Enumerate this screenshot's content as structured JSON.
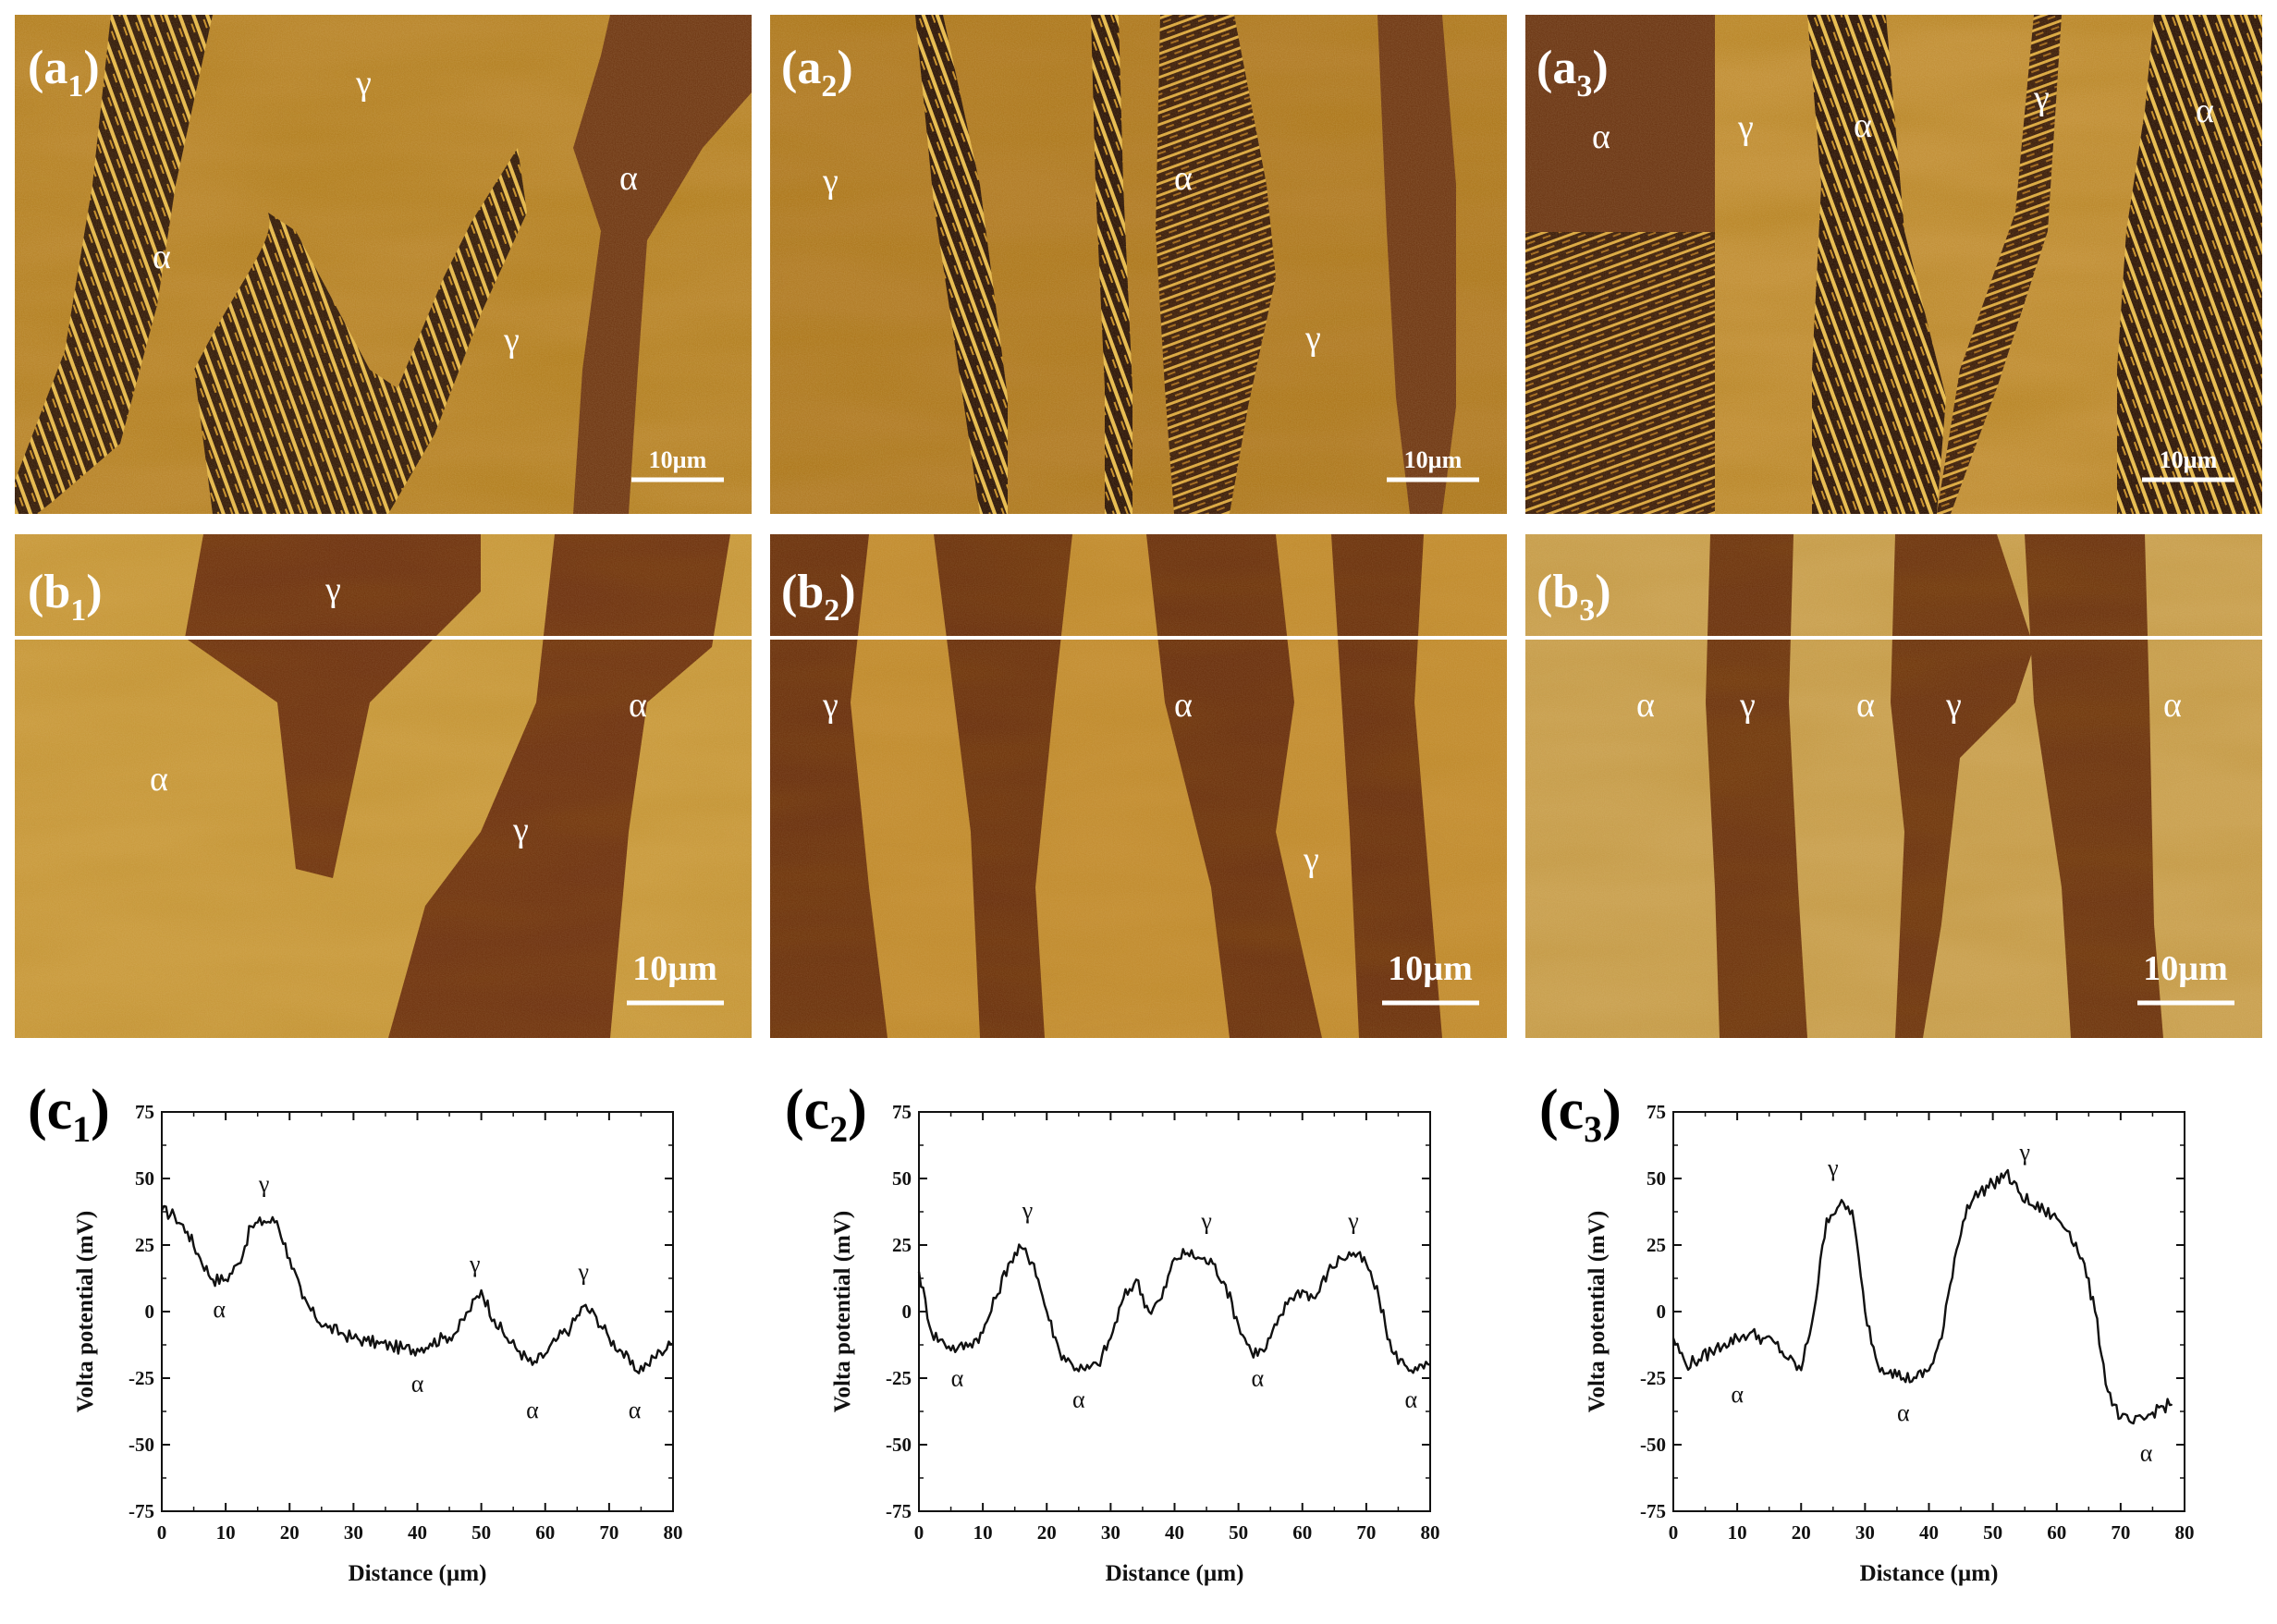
{
  "figure": {
    "a_panels": [
      {
        "label": "(a",
        "sub": "1",
        "scale": "10µm",
        "phases": [
          "γ",
          "α",
          "α",
          "γ"
        ]
      },
      {
        "label": "(a",
        "sub": "2",
        "scale": "10µm",
        "phases": [
          "γ",
          "α",
          "γ"
        ]
      },
      {
        "label": "(a",
        "sub": "3",
        "scale": "10µm",
        "phases": [
          "α",
          "γ",
          "α",
          "γ",
          "α"
        ]
      }
    ],
    "b_panels": [
      {
        "label": "(b",
        "sub": "1",
        "scale": "10µm",
        "phases": [
          "γ",
          "α",
          "α",
          "γ"
        ]
      },
      {
        "label": "(b",
        "sub": "2",
        "scale": "10µm",
        "phases": [
          "γ",
          "α",
          "γ"
        ]
      },
      {
        "label": "(b",
        "sub": "3",
        "scale": "10µm",
        "phases": [
          "α",
          "γ",
          "α",
          "γ",
          "α"
        ]
      }
    ]
  },
  "chart_data": [
    {
      "type": "line",
      "panel_label": "(c",
      "panel_sub": "1",
      "xlabel": "Distance (µm)",
      "ylabel": "Volta potential (mV)",
      "xlim": [
        0,
        80
      ],
      "ylim": [
        -75,
        75
      ],
      "xticks": [
        "0",
        "10",
        "20",
        "30",
        "40",
        "50",
        "60",
        "70",
        "80"
      ],
      "yticks": [
        "75",
        "50",
        "25",
        "0",
        "-25",
        "-50",
        "-75"
      ],
      "x": [
        0,
        2,
        4,
        6,
        8,
        10,
        12,
        14,
        16,
        18,
        20,
        22,
        24,
        26,
        28,
        30,
        32,
        34,
        36,
        38,
        40,
        42,
        44,
        46,
        48,
        50,
        52,
        54,
        56,
        58,
        60,
        62,
        64,
        66,
        68,
        70,
        72,
        74,
        76,
        78,
        80
      ],
      "y": [
        38,
        36,
        30,
        20,
        12,
        12,
        18,
        32,
        34,
        34,
        20,
        5,
        -2,
        -6,
        -8,
        -10,
        -11,
        -12,
        -13,
        -14,
        -14,
        -12,
        -10,
        -8,
        0,
        8,
        -3,
        -10,
        -15,
        -20,
        -16,
        -10,
        -6,
        2,
        -2,
        -10,
        -15,
        -22,
        -20,
        -15,
        -12
      ],
      "annotations": [
        {
          "text": "γ",
          "x": 16,
          "y": 45
        },
        {
          "text": "α",
          "x": 9,
          "y": -2
        },
        {
          "text": "α",
          "x": 40,
          "y": -30
        },
        {
          "text": "γ",
          "x": 49,
          "y": 15
        },
        {
          "text": "α",
          "x": 58,
          "y": -40
        },
        {
          "text": "γ",
          "x": 66,
          "y": 12
        },
        {
          "text": "α",
          "x": 74,
          "y": -40
        }
      ]
    },
    {
      "type": "line",
      "panel_label": "(c",
      "panel_sub": "2",
      "xlabel": "Distance (µm)",
      "ylabel": "Volta potential (mV)",
      "xlim": [
        0,
        80
      ],
      "ylim": [
        -75,
        75
      ],
      "xticks": [
        "0",
        "10",
        "20",
        "30",
        "40",
        "50",
        "60",
        "70",
        "80"
      ],
      "yticks": [
        "75",
        "50",
        "25",
        "0",
        "-25",
        "-50",
        "-75"
      ],
      "x": [
        0,
        2,
        4,
        6,
        8,
        10,
        12,
        14,
        16,
        18,
        20,
        22,
        24,
        26,
        28,
        30,
        32,
        34,
        36,
        38,
        40,
        42,
        44,
        46,
        48,
        50,
        52,
        54,
        56,
        58,
        60,
        62,
        64,
        66,
        68,
        70,
        72,
        74,
        76,
        78,
        80
      ],
      "y": [
        15,
        -8,
        -12,
        -14,
        -12,
        -8,
        5,
        18,
        24,
        18,
        0,
        -15,
        -20,
        -22,
        -20,
        -10,
        5,
        12,
        0,
        5,
        20,
        22,
        20,
        18,
        10,
        -5,
        -15,
        -15,
        -5,
        5,
        8,
        5,
        15,
        20,
        22,
        18,
        5,
        -15,
        -20,
        -22,
        -20
      ],
      "annotations": [
        {
          "text": "γ",
          "x": 17,
          "y": 35
        },
        {
          "text": "α",
          "x": 6,
          "y": -28
        },
        {
          "text": "α",
          "x": 25,
          "y": -36
        },
        {
          "text": "γ",
          "x": 45,
          "y": 31
        },
        {
          "text": "α",
          "x": 53,
          "y": -28
        },
        {
          "text": "γ",
          "x": 68,
          "y": 31
        },
        {
          "text": "α",
          "x": 77,
          "y": -36
        }
      ]
    },
    {
      "type": "line",
      "panel_label": "(c",
      "panel_sub": "3",
      "xlabel": "Distance (µm)",
      "ylabel": "Volta potential (mV)",
      "xlim": [
        0,
        80
      ],
      "ylim": [
        -75,
        75
      ],
      "xticks": [
        "0",
        "10",
        "20",
        "30",
        "40",
        "50",
        "60",
        "70",
        "80"
      ],
      "yticks": [
        "75",
        "50",
        "25",
        "0",
        "-25",
        "-50",
        "-75"
      ],
      "x": [
        0,
        2,
        4,
        6,
        8,
        10,
        12,
        14,
        16,
        18,
        20,
        22,
        24,
        26,
        28,
        30,
        32,
        34,
        36,
        38,
        40,
        42,
        44,
        46,
        48,
        50,
        52,
        54,
        56,
        58,
        60,
        62,
        64,
        66,
        68,
        70,
        72,
        74,
        76,
        78
      ],
      "y": [
        -10,
        -20,
        -18,
        -15,
        -12,
        -10,
        -8,
        -10,
        -12,
        -18,
        -22,
        0,
        35,
        40,
        38,
        0,
        -20,
        -22,
        -25,
        -25,
        -22,
        -10,
        20,
        40,
        45,
        48,
        52,
        45,
        40,
        38,
        35,
        30,
        20,
        0,
        -30,
        -40,
        -42,
        -40,
        -36,
        -35
      ],
      "annotations": [
        {
          "text": "γ",
          "x": 25,
          "y": 51
        },
        {
          "text": "α",
          "x": 10,
          "y": -34
        },
        {
          "text": "α",
          "x": 36,
          "y": -41
        },
        {
          "text": "γ",
          "x": 55,
          "y": 57
        },
        {
          "text": "α",
          "x": 74,
          "y": -56
        }
      ]
    }
  ]
}
